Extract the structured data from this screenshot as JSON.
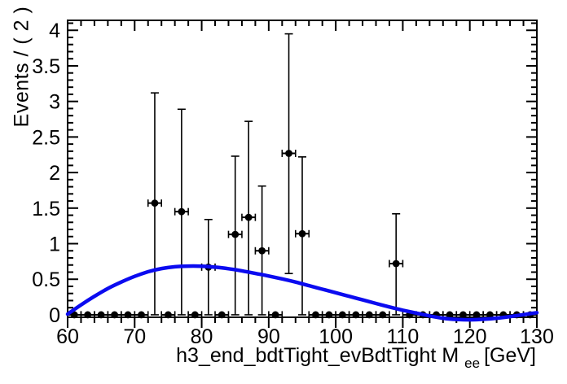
{
  "figure": {
    "background": "#ffffff",
    "frame_color": "#000000"
  },
  "chart_data": {
    "type": "scatter",
    "description": "RooFit-style plot: 2-GeV binned data points with asymmetric Poisson error bars and a smooth fitted background curve",
    "title": "",
    "ylabel": "Events / ( 2 )",
    "xlabel_prefix": "h3_end_bdtTight_evBdtTight M",
    "xlabel_subscript": "ee",
    "xlabel_suffix": "[GeV]",
    "xlim": [
      60,
      130
    ],
    "ylim": [
      -0.035,
      4.14
    ],
    "x_major_ticks": [
      60,
      70,
      80,
      90,
      100,
      110,
      120,
      130
    ],
    "x_minor_step": 2,
    "y_major_ticks": [
      0,
      0.5,
      1,
      1.5,
      2,
      2.5,
      3,
      3.5,
      4
    ],
    "y_tick_labels": [
      "0",
      "0.5",
      "1",
      "1.5",
      "2",
      "2.5",
      "3",
      "3.5",
      "4"
    ],
    "y_minor_step": 0.1,
    "bin_half_width": 1,
    "marker_color": "#000000",
    "curve_color": "#0b0bf0",
    "points": [
      {
        "x": 61,
        "y": 0
      },
      {
        "x": 63,
        "y": 0
      },
      {
        "x": 65,
        "y": 0
      },
      {
        "x": 67,
        "y": 0
      },
      {
        "x": 69,
        "y": 0
      },
      {
        "x": 71,
        "y": 0
      },
      {
        "x": 73,
        "y": 1.57,
        "ylo": 0,
        "yhi": 3.12
      },
      {
        "x": 75,
        "y": 0
      },
      {
        "x": 77,
        "y": 1.45,
        "ylo": 0,
        "yhi": 2.89
      },
      {
        "x": 79,
        "y": 0
      },
      {
        "x": 81,
        "y": 0.67,
        "ylo": 0,
        "yhi": 1.34
      },
      {
        "x": 83,
        "y": 0
      },
      {
        "x": 85,
        "y": 1.13,
        "ylo": 0,
        "yhi": 2.23
      },
      {
        "x": 87,
        "y": 1.37,
        "ylo": 0,
        "yhi": 2.72
      },
      {
        "x": 89,
        "y": 0.9,
        "ylo": 0,
        "yhi": 1.81
      },
      {
        "x": 91,
        "y": 0
      },
      {
        "x": 93,
        "y": 2.27,
        "ylo": 0.58,
        "yhi": 3.95
      },
      {
        "x": 95,
        "y": 1.14,
        "ylo": 0,
        "yhi": 2.22
      },
      {
        "x": 97,
        "y": 0
      },
      {
        "x": 99,
        "y": 0
      },
      {
        "x": 101,
        "y": 0
      },
      {
        "x": 103,
        "y": 0
      },
      {
        "x": 105,
        "y": 0
      },
      {
        "x": 107,
        "y": 0
      },
      {
        "x": 109,
        "y": 0.72,
        "ylo": 0,
        "yhi": 1.42
      },
      {
        "x": 111,
        "y": 0
      },
      {
        "x": 113,
        "y": 0
      },
      {
        "x": 115,
        "y": 0
      },
      {
        "x": 117,
        "y": 0
      },
      {
        "x": 119,
        "y": 0
      },
      {
        "x": 121,
        "y": 0
      },
      {
        "x": 123,
        "y": 0
      },
      {
        "x": 125,
        "y": 0
      },
      {
        "x": 127,
        "y": 0
      },
      {
        "x": 129,
        "y": 0
      }
    ],
    "curve": [
      [
        60,
        0.01
      ],
      [
        62,
        0.14
      ],
      [
        64,
        0.26
      ],
      [
        66,
        0.37
      ],
      [
        68,
        0.46
      ],
      [
        70,
        0.54
      ],
      [
        72,
        0.605
      ],
      [
        74,
        0.65
      ],
      [
        76,
        0.675
      ],
      [
        78,
        0.685
      ],
      [
        80,
        0.683
      ],
      [
        82,
        0.67
      ],
      [
        84,
        0.648
      ],
      [
        86,
        0.618
      ],
      [
        88,
        0.582
      ],
      [
        90,
        0.545
      ],
      [
        92,
        0.505
      ],
      [
        94,
        0.46
      ],
      [
        96,
        0.41
      ],
      [
        98,
        0.36
      ],
      [
        100,
        0.31
      ],
      [
        102,
        0.26
      ],
      [
        104,
        0.21
      ],
      [
        106,
        0.16
      ],
      [
        108,
        0.11
      ],
      [
        110,
        0.065
      ],
      [
        112,
        0.025
      ],
      [
        114,
        -0.015
      ],
      [
        116,
        -0.048
      ],
      [
        118,
        -0.065
      ],
      [
        120,
        -0.07
      ],
      [
        122,
        -0.063
      ],
      [
        124,
        -0.048
      ],
      [
        126,
        -0.025
      ],
      [
        128,
        0.002
      ],
      [
        130,
        0.03
      ]
    ]
  }
}
